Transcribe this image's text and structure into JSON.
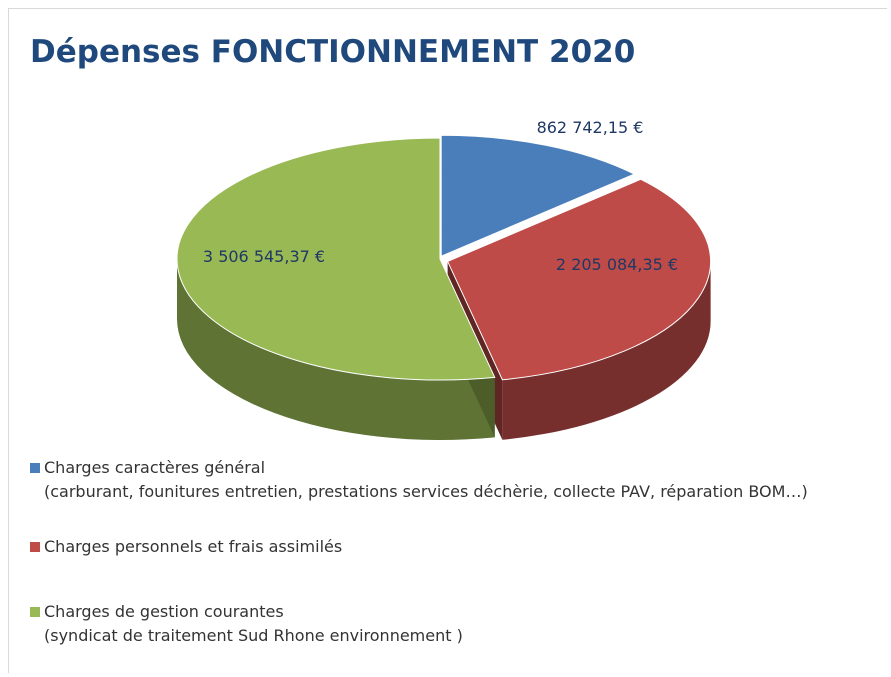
{
  "chart_data": {
    "type": "pie3d",
    "title": "Dépenses FONCTIONNEMENT 2020",
    "categories": [
      "Charges caractères général\n (carburant, founitures entretien, prestations services déchèrie, collecte PAV, réparation BOM…)",
      "Charges personnels et frais assimilés",
      "Charges de gestion courantes\n (syndicat de traitement Sud Rhone environnement )"
    ],
    "values": [
      862742.15,
      2205084.35,
      3506545.37
    ],
    "value_labels": [
      "862 742,15 €",
      "2 205 084,35 €",
      "3 506 545,37 €"
    ],
    "colors": [
      "#4a7ebb",
      "#be4b48",
      "#98b954"
    ],
    "legend": "bottom-left"
  }
}
